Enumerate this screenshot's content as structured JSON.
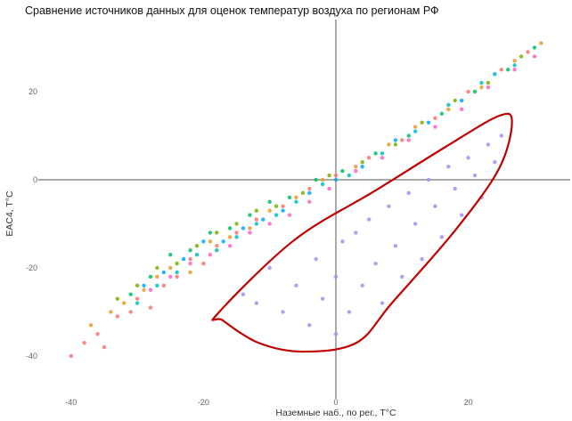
{
  "chart_data": {
    "type": "scatter",
    "title": "Сравнение источников данных для оценок температур воздуха по регионам РФ",
    "xlabel": "Наземные наб., по рег., T°C",
    "ylabel": "EAC4, T°C",
    "xlim": [
      -45,
      35
    ],
    "ylim": [
      -42,
      33
    ],
    "x_ticks": [
      "-40",
      "-20",
      "0",
      "20"
    ],
    "x_tick_values": [
      -40,
      -20,
      0,
      20
    ],
    "y_ticks": [
      "20",
      "0",
      "-20",
      "-40"
    ],
    "y_tick_values": [
      20,
      0,
      -20,
      -40
    ],
    "grid": false,
    "zero_lines": true,
    "legend": "none",
    "series": [
      {
        "color": "#f8766d",
        "points": [
          [
            -40,
            -40
          ],
          [
            -38,
            -37
          ],
          [
            -36,
            -35
          ],
          [
            -35,
            -38
          ],
          [
            -33,
            -31
          ],
          [
            -31,
            -30
          ],
          [
            -30,
            -27
          ],
          [
            -28,
            -29
          ],
          [
            -26,
            -24
          ],
          [
            -24,
            -22
          ],
          [
            -22,
            -18
          ],
          [
            -20,
            -19
          ],
          [
            -18,
            -15
          ],
          [
            -15,
            -12
          ],
          [
            -12,
            -9
          ],
          [
            -8,
            -6
          ],
          [
            -4,
            -2
          ],
          [
            0,
            1
          ],
          [
            5,
            5
          ],
          [
            10,
            9
          ],
          [
            15,
            14
          ],
          [
            20,
            20
          ],
          [
            25,
            25
          ],
          [
            29,
            29
          ]
        ]
      },
      {
        "color": "#e89a2a",
        "points": [
          [
            -37,
            -33
          ],
          [
            -34,
            -30
          ],
          [
            -32,
            -28
          ],
          [
            -29,
            -25
          ],
          [
            -27,
            -22
          ],
          [
            -25,
            -20
          ],
          [
            -22,
            -21
          ],
          [
            -19,
            -14
          ],
          [
            -16,
            -13
          ],
          [
            -13,
            -11
          ],
          [
            -10,
            -7
          ],
          [
            -6,
            -4
          ],
          [
            -2,
            0
          ],
          [
            3,
            3
          ],
          [
            8,
            8
          ],
          [
            12,
            12
          ],
          [
            17,
            16
          ],
          [
            22,
            21
          ],
          [
            27,
            27
          ],
          [
            31,
            31
          ]
        ]
      },
      {
        "color": "#7cae00",
        "points": [
          [
            -33,
            -27
          ],
          [
            -30,
            -24
          ],
          [
            -27,
            -20
          ],
          [
            -24,
            -19
          ],
          [
            -21,
            -15
          ],
          [
            -18,
            -12
          ],
          [
            -15,
            -10
          ],
          [
            -12,
            -7
          ],
          [
            -9,
            -6
          ],
          [
            -5,
            -3
          ],
          [
            -1,
            1
          ],
          [
            4,
            4
          ],
          [
            9,
            8
          ],
          [
            13,
            13
          ],
          [
            18,
            18
          ],
          [
            23,
            22
          ],
          [
            28,
            28
          ]
        ]
      },
      {
        "color": "#00be67",
        "points": [
          [
            -31,
            -26
          ],
          [
            -28,
            -22
          ],
          [
            -25,
            -17
          ],
          [
            -22,
            -16
          ],
          [
            -19,
            -12
          ],
          [
            -16,
            -11
          ],
          [
            -13,
            -8
          ],
          [
            -10,
            -5
          ],
          [
            -7,
            -4
          ],
          [
            -3,
            0
          ],
          [
            1,
            2
          ],
          [
            6,
            6
          ],
          [
            11,
            10
          ],
          [
            16,
            15
          ],
          [
            21,
            20
          ],
          [
            26,
            25
          ],
          [
            30,
            30
          ]
        ]
      },
      {
        "color": "#00bfc4",
        "points": [
          [
            -30,
            -28
          ],
          [
            -27,
            -24
          ],
          [
            -24,
            -21
          ],
          [
            -21,
            -17
          ],
          [
            -18,
            -16
          ],
          [
            -15,
            -13
          ],
          [
            -12,
            -10
          ],
          [
            -9,
            -8
          ],
          [
            -6,
            -5
          ],
          [
            -2,
            -1
          ],
          [
            2,
            1
          ],
          [
            7,
            6
          ],
          [
            12,
            11
          ],
          [
            17,
            17
          ],
          [
            22,
            22
          ],
          [
            27,
            26
          ]
        ]
      },
      {
        "color": "#00a9ff",
        "points": [
          [
            -29,
            -24
          ],
          [
            -26,
            -21
          ],
          [
            -23,
            -18
          ],
          [
            -20,
            -14
          ],
          [
            -17,
            -14
          ],
          [
            -14,
            -11
          ],
          [
            -11,
            -9
          ],
          [
            -8,
            -7
          ],
          [
            -4,
            -3
          ],
          [
            0,
            0
          ],
          [
            4,
            3
          ],
          [
            9,
            9
          ],
          [
            14,
            13
          ],
          [
            19,
            18
          ],
          [
            24,
            24
          ]
        ]
      },
      {
        "color": "#ff61c3",
        "points": [
          [
            -28,
            -25
          ],
          [
            -25,
            -22
          ],
          [
            -22,
            -19
          ],
          [
            -19,
            -17
          ],
          [
            -16,
            -15
          ],
          [
            -13,
            -12
          ],
          [
            -10,
            -10
          ],
          [
            -7,
            -8
          ],
          [
            -4,
            -5
          ],
          [
            -1,
            -2
          ],
          [
            3,
            2
          ],
          [
            7,
            5
          ],
          [
            11,
            9
          ],
          [
            15,
            12
          ],
          [
            19,
            16
          ],
          [
            23,
            21
          ],
          [
            27,
            25
          ],
          [
            30,
            28
          ]
        ]
      },
      {
        "color": "#a98bf5",
        "points": [
          [
            -14,
            -26
          ],
          [
            -12,
            -28
          ],
          [
            -10,
            -20
          ],
          [
            -8,
            -30
          ],
          [
            -6,
            -24
          ],
          [
            -4,
            -33
          ],
          [
            -3,
            -18
          ],
          [
            -2,
            -27
          ],
          [
            0,
            -22
          ],
          [
            0,
            -35
          ],
          [
            1,
            -14
          ],
          [
            2,
            -30
          ],
          [
            3,
            -12
          ],
          [
            4,
            -24
          ],
          [
            5,
            -9
          ],
          [
            6,
            -19
          ],
          [
            7,
            -28
          ],
          [
            8,
            -6
          ],
          [
            9,
            -15
          ],
          [
            10,
            -22
          ],
          [
            11,
            -3
          ],
          [
            12,
            -10
          ],
          [
            13,
            -18
          ],
          [
            14,
            0
          ],
          [
            15,
            -6
          ],
          [
            16,
            -13
          ],
          [
            17,
            3
          ],
          [
            18,
            -2
          ],
          [
            19,
            -8
          ],
          [
            20,
            5
          ],
          [
            21,
            1
          ],
          [
            22,
            -4
          ],
          [
            23,
            8
          ],
          [
            24,
            4
          ],
          [
            25,
            10
          ]
        ]
      }
    ],
    "annotation": {
      "type": "closed-curve",
      "color": "#c00000",
      "points": [
        [
          -17.8,
          -30.3
        ],
        [
          -6.3,
          -13.7
        ],
        [
          5.8,
          -2.6
        ],
        [
          16.6,
          7.5
        ],
        [
          24.6,
          14.5
        ],
        [
          26.6,
          13.1
        ],
        [
          24.6,
          2.4
        ],
        [
          17.9,
          -11.7
        ],
        [
          8.5,
          -27.9
        ],
        [
          3.1,
          -37
        ],
        [
          -5,
          -39
        ],
        [
          -11.7,
          -37
        ],
        [
          -17.1,
          -31.9
        ]
      ]
    }
  }
}
